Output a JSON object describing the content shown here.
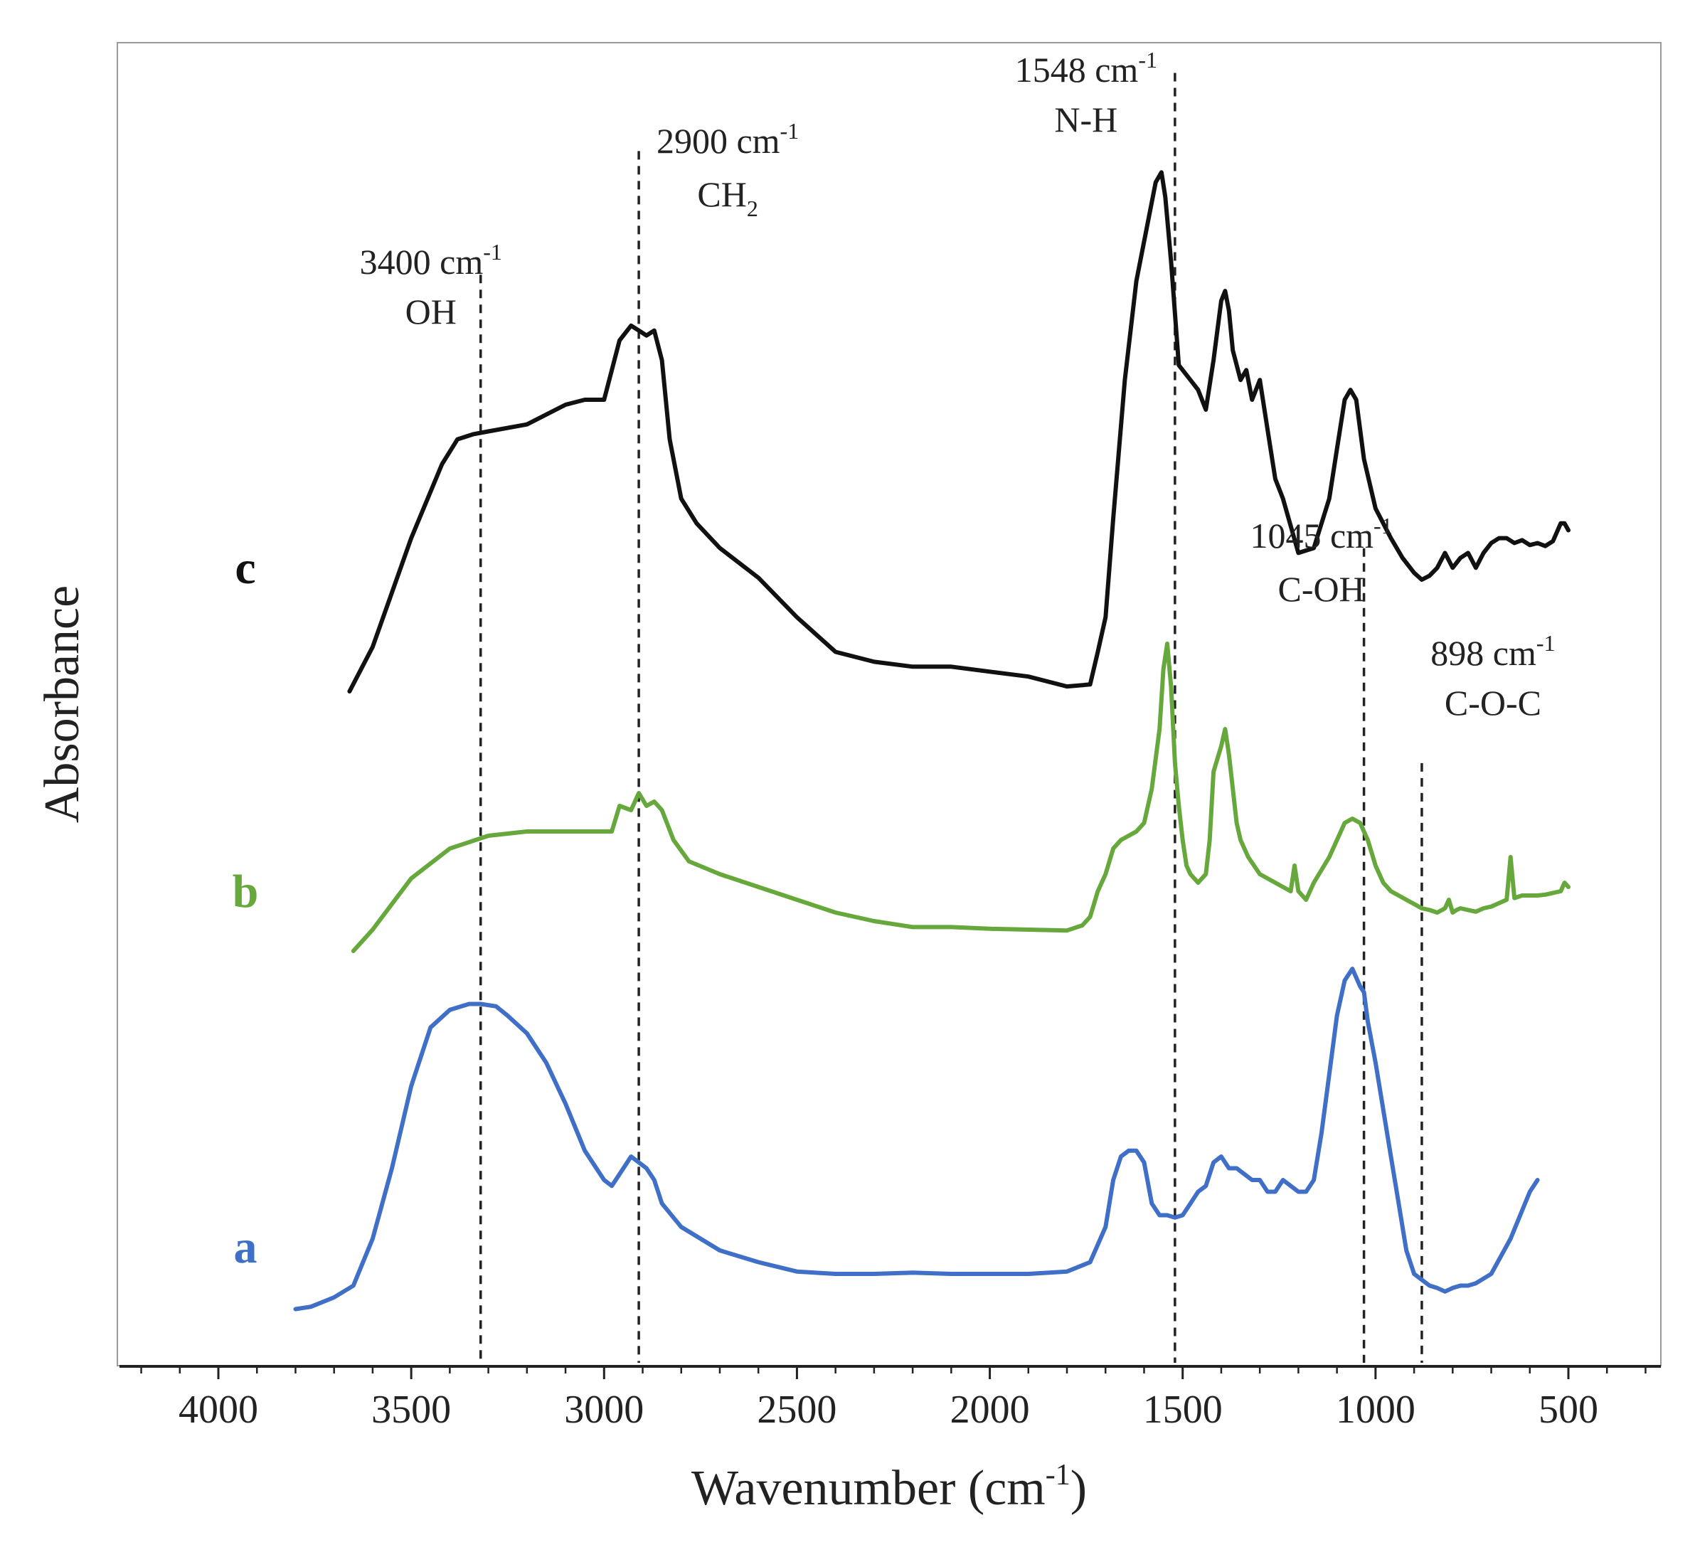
{
  "chart_data": {
    "type": "line",
    "title": "",
    "xlabel": "Wavenumber (cm",
    "xlabel_sup": "-1",
    "xlabel_suffix": ")",
    "ylabel": "Absorbance",
    "xlim": [
      4300,
      230
    ],
    "ylim": [
      0,
      1
    ],
    "x_reversed": true,
    "grid": false,
    "xticks": [
      4000,
      3500,
      3000,
      2500,
      2000,
      1500,
      1000,
      500
    ],
    "xtick_labels": [
      "4000",
      "3500",
      "3000",
      "2500",
      "2000",
      "1500",
      "1000",
      "500"
    ],
    "annotations": [
      {
        "x": 3320,
        "line_top": 0.83,
        "line_bottom": 0.0,
        "value": "3400 cm",
        "sup": "-1",
        "group": "OH",
        "sub": ""
      },
      {
        "x": 2910,
        "line_top": 0.925,
        "line_bottom": 0.0,
        "value": "2900 cm",
        "sup": "-1",
        "group": "CH",
        "sub": "2"
      },
      {
        "x": 1520,
        "line_top": 0.985,
        "line_bottom": 0.0,
        "value": "1548 cm",
        "sup": "-1",
        "group": "N-H",
        "sub": ""
      },
      {
        "x": 1030,
        "line_top": 0.62,
        "line_bottom": 0.0,
        "value": "1045 cm",
        "sup": "-1",
        "group": "C-OH",
        "sub": ""
      },
      {
        "x": 880,
        "line_top": 0.455,
        "line_bottom": 0.0,
        "value": "898 cm",
        "sup": "-1",
        "group": "C-O-C",
        "sub": ""
      }
    ],
    "series": [
      {
        "name": "c",
        "color": "#111111",
        "x": [
          3660,
          3600,
          3500,
          3420,
          3380,
          3340,
          3300,
          3200,
          3100,
          3050,
          3000,
          2960,
          2930,
          2910,
          2890,
          2870,
          2850,
          2830,
          2800,
          2760,
          2700,
          2600,
          2500,
          2400,
          2300,
          2200,
          2100,
          2000,
          1900,
          1800,
          1740,
          1720,
          1700,
          1680,
          1650,
          1620,
          1590,
          1570,
          1555,
          1545,
          1530,
          1510,
          1500,
          1480,
          1460,
          1440,
          1420,
          1400,
          1390,
          1380,
          1370,
          1350,
          1335,
          1320,
          1300,
          1280,
          1260,
          1240,
          1200,
          1160,
          1120,
          1100,
          1080,
          1065,
          1050,
          1030,
          1000,
          960,
          930,
          900,
          880,
          860,
          840,
          820,
          800,
          780,
          760,
          740,
          720,
          700,
          680,
          660,
          640,
          620,
          600,
          580,
          560,
          540,
          520,
          510,
          500
        ],
        "y": [
          0.405,
          0.45,
          0.56,
          0.635,
          0.66,
          0.665,
          0.668,
          0.675,
          0.695,
          0.7,
          0.7,
          0.76,
          0.775,
          0.77,
          0.765,
          0.77,
          0.74,
          0.66,
          0.6,
          0.575,
          0.55,
          0.52,
          0.48,
          0.445,
          0.435,
          0.43,
          0.43,
          0.425,
          0.42,
          0.41,
          0.412,
          0.445,
          0.48,
          0.58,
          0.72,
          0.82,
          0.88,
          0.92,
          0.93,
          0.905,
          0.84,
          0.735,
          0.73,
          0.72,
          0.71,
          0.69,
          0.74,
          0.8,
          0.81,
          0.79,
          0.75,
          0.72,
          0.73,
          0.7,
          0.72,
          0.67,
          0.62,
          0.6,
          0.545,
          0.55,
          0.6,
          0.65,
          0.7,
          0.71,
          0.7,
          0.64,
          0.59,
          0.56,
          0.54,
          0.525,
          0.518,
          0.522,
          0.53,
          0.545,
          0.53,
          0.54,
          0.545,
          0.53,
          0.545,
          0.555,
          0.56,
          0.56,
          0.555,
          0.558,
          0.553,
          0.555,
          0.552,
          0.557,
          0.575,
          0.575,
          0.568
        ]
      },
      {
        "name": "b",
        "color": "#67a83d",
        "x": [
          3650,
          3600,
          3500,
          3400,
          3300,
          3200,
          3100,
          3020,
          2980,
          2960,
          2930,
          2910,
          2890,
          2870,
          2850,
          2820,
          2780,
          2700,
          2600,
          2500,
          2400,
          2300,
          2200,
          2100,
          2000,
          1900,
          1800,
          1760,
          1740,
          1720,
          1700,
          1680,
          1660,
          1640,
          1620,
          1600,
          1580,
          1560,
          1550,
          1540,
          1530,
          1520,
          1510,
          1500,
          1490,
          1480,
          1460,
          1440,
          1430,
          1420,
          1400,
          1390,
          1380,
          1370,
          1360,
          1350,
          1330,
          1300,
          1280,
          1260,
          1240,
          1220,
          1210,
          1200,
          1190,
          1180,
          1160,
          1120,
          1080,
          1060,
          1040,
          1020,
          1000,
          980,
          960,
          940,
          920,
          900,
          880,
          860,
          840,
          820,
          810,
          800,
          790,
          780,
          760,
          740,
          720,
          700,
          680,
          660,
          650,
          640,
          620,
          600,
          580,
          560,
          540,
          520,
          510,
          500
        ],
        "y": [
          0.29,
          0.315,
          0.375,
          0.41,
          0.425,
          0.43,
          0.43,
          0.43,
          0.43,
          0.46,
          0.455,
          0.475,
          0.46,
          0.465,
          0.455,
          0.42,
          0.395,
          0.38,
          0.365,
          0.35,
          0.335,
          0.325,
          0.318,
          0.318,
          0.316,
          0.315,
          0.314,
          0.32,
          0.33,
          0.36,
          0.38,
          0.41,
          0.42,
          0.425,
          0.43,
          0.44,
          0.48,
          0.55,
          0.62,
          0.65,
          0.6,
          0.51,
          0.46,
          0.42,
          0.39,
          0.38,
          0.37,
          0.38,
          0.42,
          0.5,
          0.53,
          0.55,
          0.52,
          0.48,
          0.44,
          0.42,
          0.4,
          0.38,
          0.375,
          0.37,
          0.365,
          0.36,
          0.39,
          0.36,
          0.355,
          0.35,
          0.37,
          0.4,
          0.44,
          0.445,
          0.44,
          0.42,
          0.39,
          0.37,
          0.36,
          0.355,
          0.35,
          0.345,
          0.34,
          0.338,
          0.335,
          0.34,
          0.35,
          0.335,
          0.338,
          0.34,
          0.338,
          0.336,
          0.34,
          0.342,
          0.346,
          0.35,
          0.4,
          0.352,
          0.355,
          0.355,
          0.355,
          0.356,
          0.358,
          0.36,
          0.37,
          0.365
        ]
      },
      {
        "name": "a",
        "color": "#3f6fc6",
        "x": [
          3800,
          3760,
          3700,
          3650,
          3600,
          3550,
          3500,
          3450,
          3400,
          3350,
          3320,
          3280,
          3250,
          3200,
          3150,
          3100,
          3050,
          3000,
          2980,
          2960,
          2940,
          2930,
          2910,
          2890,
          2870,
          2850,
          2800,
          2700,
          2600,
          2500,
          2400,
          2300,
          2200,
          2100,
          2000,
          1900,
          1800,
          1740,
          1700,
          1680,
          1660,
          1640,
          1620,
          1600,
          1580,
          1560,
          1540,
          1520,
          1500,
          1480,
          1460,
          1440,
          1420,
          1400,
          1380,
          1360,
          1340,
          1320,
          1300,
          1280,
          1260,
          1240,
          1220,
          1200,
          1180,
          1160,
          1140,
          1120,
          1100,
          1080,
          1060,
          1040,
          1030,
          1020,
          1000,
          980,
          960,
          940,
          920,
          900,
          880,
          860,
          840,
          820,
          800,
          780,
          760,
          740,
          700,
          650,
          600,
          580
        ],
        "y": [
          0.03,
          0.032,
          0.04,
          0.05,
          0.09,
          0.15,
          0.22,
          0.27,
          0.285,
          0.29,
          0.29,
          0.288,
          0.28,
          0.265,
          0.24,
          0.205,
          0.165,
          0.14,
          0.135,
          0.145,
          0.155,
          0.16,
          0.155,
          0.15,
          0.14,
          0.12,
          0.1,
          0.08,
          0.07,
          0.062,
          0.06,
          0.06,
          0.061,
          0.06,
          0.06,
          0.06,
          0.062,
          0.07,
          0.1,
          0.14,
          0.16,
          0.165,
          0.165,
          0.155,
          0.12,
          0.11,
          0.11,
          0.108,
          0.11,
          0.12,
          0.13,
          0.135,
          0.155,
          0.16,
          0.15,
          0.15,
          0.145,
          0.14,
          0.14,
          0.13,
          0.13,
          0.14,
          0.135,
          0.13,
          0.13,
          0.14,
          0.18,
          0.23,
          0.28,
          0.31,
          0.32,
          0.305,
          0.3,
          0.275,
          0.24,
          0.2,
          0.16,
          0.12,
          0.08,
          0.06,
          0.055,
          0.05,
          0.048,
          0.045,
          0.048,
          0.05,
          0.05,
          0.052,
          0.06,
          0.09,
          0.13,
          0.14
        ]
      }
    ]
  }
}
